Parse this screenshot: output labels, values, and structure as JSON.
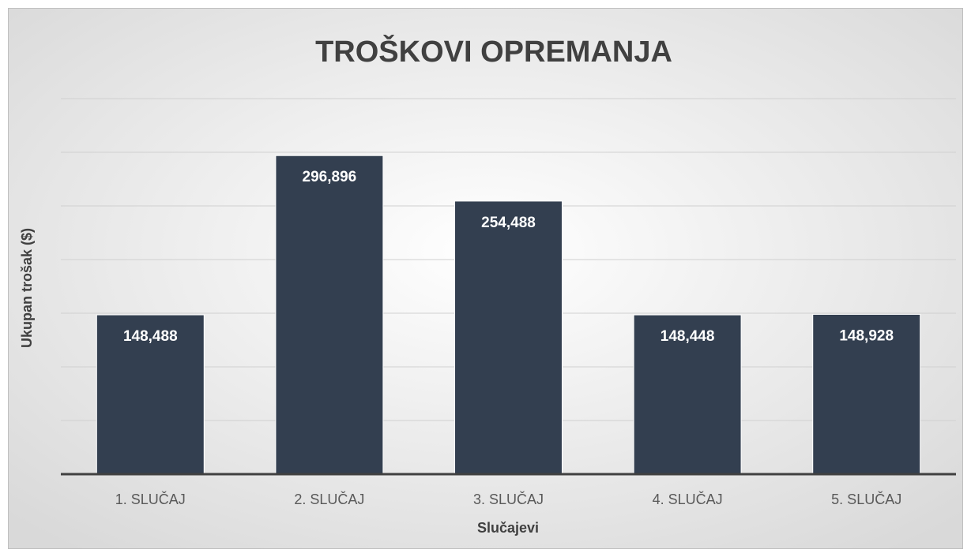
{
  "chart_data": {
    "type": "bar",
    "title": "TROŠKOVI OPREMANJA",
    "x_label": "Slučajevi",
    "y_label": "Ukupan trošak ($)",
    "categories": [
      "1. SLUČAJ",
      "2. SLUČAJ",
      "3. SLUČAJ",
      "4. SLUČAJ",
      "5. SLUČAJ"
    ],
    "values": [
      148488,
      296896,
      254488,
      148448,
      148928
    ],
    "value_labels": [
      "148,488",
      "296,896",
      "254,488",
      "148,448",
      "148,928"
    ],
    "color": "#333f50",
    "ylim": [
      0,
      350000
    ],
    "yticks": [
      0,
      50000,
      100000,
      150000,
      200000,
      250000,
      300000,
      350000
    ],
    "grid": true
  }
}
